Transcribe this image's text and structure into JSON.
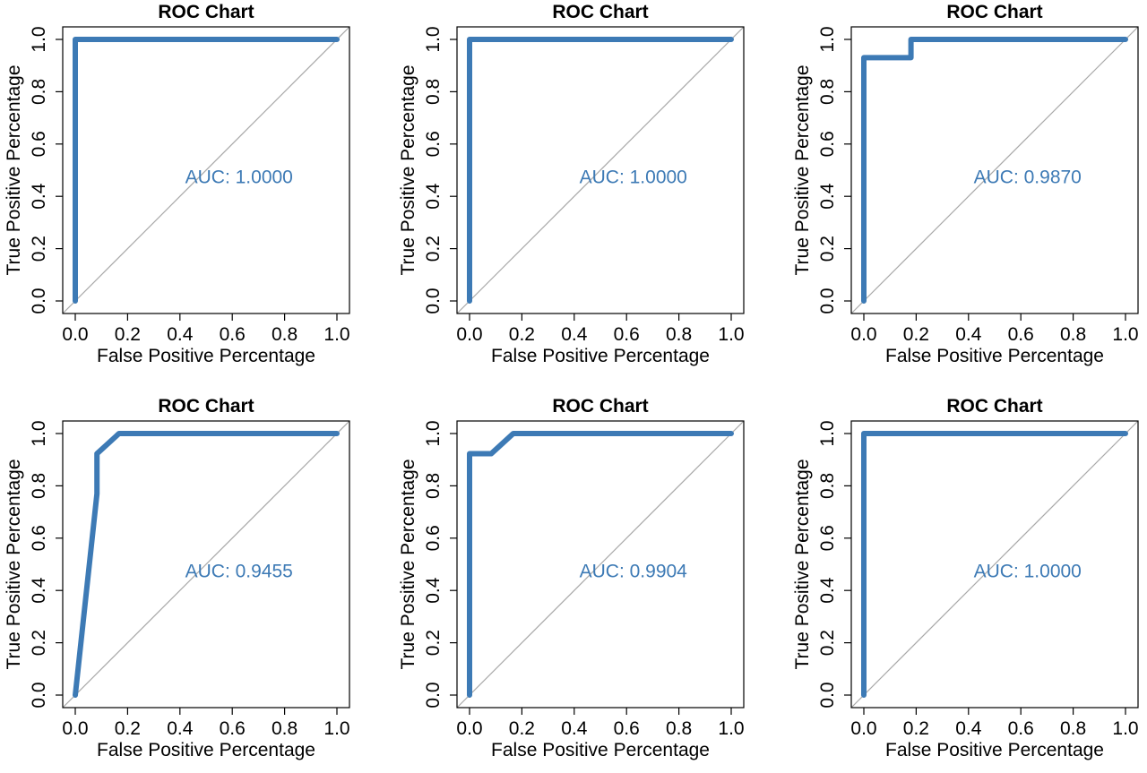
{
  "chart_data": [
    {
      "type": "line",
      "title": "ROC Chart",
      "xlabel": "False Positive Percentage",
      "ylabel": "True Positive Percentage",
      "xlim": [
        0,
        1
      ],
      "ylim": [
        0,
        1
      ],
      "xticks": [
        "0.0",
        "0.2",
        "0.4",
        "0.6",
        "0.8",
        "1.0"
      ],
      "yticks": [
        "0.0",
        "0.2",
        "0.4",
        "0.6",
        "0.8",
        "1.0"
      ],
      "annotation": "AUC: 1.0000",
      "series": [
        {
          "x": [
            0,
            0,
            1
          ],
          "y": [
            0,
            1,
            1
          ]
        }
      ]
    },
    {
      "type": "line",
      "title": "ROC Chart",
      "xlabel": "False Positive Percentage",
      "ylabel": "True Positive Percentage",
      "xlim": [
        0,
        1
      ],
      "ylim": [
        0,
        1
      ],
      "xticks": [
        "0.0",
        "0.2",
        "0.4",
        "0.6",
        "0.8",
        "1.0"
      ],
      "yticks": [
        "0.0",
        "0.2",
        "0.4",
        "0.6",
        "0.8",
        "1.0"
      ],
      "annotation": "AUC: 1.0000",
      "series": [
        {
          "x": [
            0,
            0,
            1
          ],
          "y": [
            0,
            1,
            1
          ]
        }
      ]
    },
    {
      "type": "line",
      "title": "ROC Chart",
      "xlabel": "False Positive Percentage",
      "ylabel": "True Positive Percentage",
      "xlim": [
        0,
        1
      ],
      "ylim": [
        0,
        1
      ],
      "xticks": [
        "0.0",
        "0.2",
        "0.4",
        "0.6",
        "0.8",
        "1.0"
      ],
      "yticks": [
        "0.0",
        "0.2",
        "0.4",
        "0.6",
        "0.8",
        "1.0"
      ],
      "annotation": "AUC: 0.9870",
      "series": [
        {
          "x": [
            0,
            0,
            0.18,
            0.18,
            1
          ],
          "y": [
            0,
            0.93,
            0.93,
            1,
            1
          ]
        }
      ]
    },
    {
      "type": "line",
      "title": "ROC Chart",
      "xlabel": "False Positive Percentage",
      "ylabel": "True Positive Percentage",
      "xlim": [
        0,
        1
      ],
      "ylim": [
        0,
        1
      ],
      "xticks": [
        "0.0",
        "0.2",
        "0.4",
        "0.6",
        "0.8",
        "1.0"
      ],
      "yticks": [
        "0.0",
        "0.2",
        "0.4",
        "0.6",
        "0.8",
        "1.0"
      ],
      "annotation": "AUC: 0.9455",
      "series": [
        {
          "x": [
            0,
            0.083,
            0.083,
            0.167,
            1
          ],
          "y": [
            0,
            0.77,
            0.923,
            1,
            1
          ]
        }
      ]
    },
    {
      "type": "line",
      "title": "ROC Chart",
      "xlabel": "False Positive Percentage",
      "ylabel": "True Positive Percentage",
      "xlim": [
        0,
        1
      ],
      "ylim": [
        0,
        1
      ],
      "xticks": [
        "0.0",
        "0.2",
        "0.4",
        "0.6",
        "0.8",
        "1.0"
      ],
      "yticks": [
        "0.0",
        "0.2",
        "0.4",
        "0.6",
        "0.8",
        "1.0"
      ],
      "annotation": "AUC: 0.9904",
      "series": [
        {
          "x": [
            0,
            0,
            0.083,
            0.167,
            1
          ],
          "y": [
            0,
            0.923,
            0.923,
            1,
            1
          ]
        }
      ]
    },
    {
      "type": "line",
      "title": "ROC Chart",
      "xlabel": "False Positive Percentage",
      "ylabel": "True Positive Percentage",
      "xlim": [
        0,
        1
      ],
      "ylim": [
        0,
        1
      ],
      "xticks": [
        "0.0",
        "0.2",
        "0.4",
        "0.6",
        "0.8",
        "1.0"
      ],
      "yticks": [
        "0.0",
        "0.2",
        "0.4",
        "0.6",
        "0.8",
        "1.0"
      ],
      "annotation": "AUC: 1.0000",
      "series": [
        {
          "x": [
            0,
            0,
            1
          ],
          "y": [
            0,
            1,
            1
          ]
        }
      ]
    }
  ],
  "colors": {
    "roc_line": "#3d7ab5",
    "diagonal": "#a8a8a8",
    "axis": "#000000"
  }
}
